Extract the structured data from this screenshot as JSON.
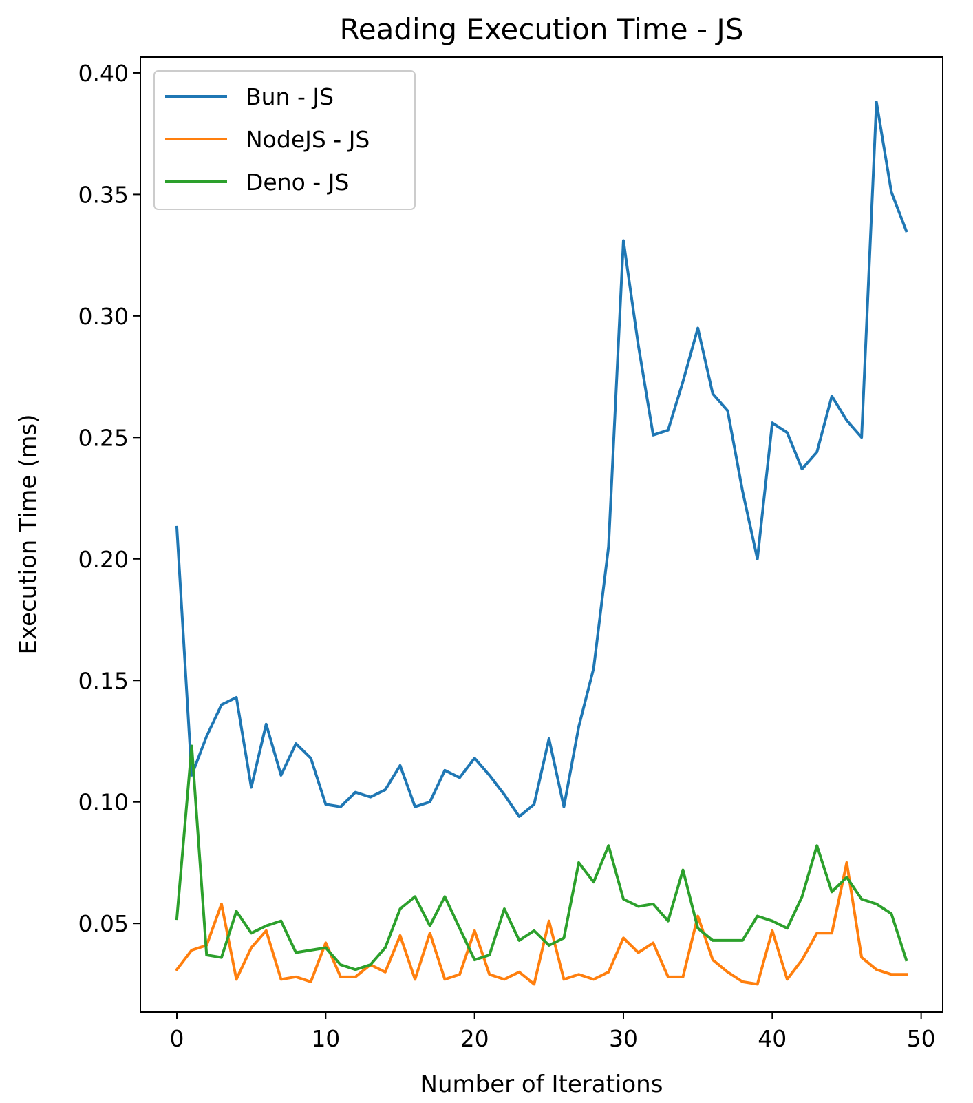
{
  "chart_data": {
    "type": "line",
    "title": "Reading Execution Time - JS",
    "xlabel": "Number of Iterations",
    "ylabel": "Execution Time (ms)",
    "xlim": [
      -2.45,
      51.45
    ],
    "ylim": [
      0.0135,
      0.4065
    ],
    "xticks": [
      0,
      10,
      20,
      30,
      40,
      50
    ],
    "yticks": [
      0.05,
      0.1,
      0.15,
      0.2,
      0.25,
      0.3,
      0.35,
      0.4
    ],
    "xtick_labels": [
      "0",
      "10",
      "20",
      "30",
      "40",
      "50"
    ],
    "ytick_labels": [
      "0.05",
      "0.10",
      "0.15",
      "0.20",
      "0.25",
      "0.30",
      "0.35",
      "0.40"
    ],
    "grid": false,
    "legend_position": "top-left",
    "x": [
      0,
      1,
      2,
      3,
      4,
      5,
      6,
      7,
      8,
      9,
      10,
      11,
      12,
      13,
      14,
      15,
      16,
      17,
      18,
      19,
      20,
      21,
      22,
      23,
      24,
      25,
      26,
      27,
      28,
      29,
      30,
      31,
      32,
      33,
      34,
      35,
      36,
      37,
      38,
      39,
      40,
      41,
      42,
      43,
      44,
      45,
      46,
      47,
      48,
      49
    ],
    "series": [
      {
        "name": "Bun - JS",
        "color": "#1f77b4",
        "values": [
          0.213,
          0.111,
          0.127,
          0.14,
          0.143,
          0.106,
          0.132,
          0.111,
          0.124,
          0.118,
          0.099,
          0.098,
          0.104,
          0.102,
          0.105,
          0.115,
          0.098,
          0.1,
          0.113,
          0.11,
          0.118,
          0.111,
          0.103,
          0.094,
          0.099,
          0.126,
          0.098,
          0.131,
          0.155,
          0.205,
          0.331,
          0.288,
          0.251,
          0.253,
          0.273,
          0.295,
          0.268,
          0.261,
          0.228,
          0.2,
          0.256,
          0.252,
          0.237,
          0.244,
          0.267,
          0.257,
          0.25,
          0.388,
          0.351,
          0.335
        ]
      },
      {
        "name": "NodeJS - JS",
        "color": "#ff7f0e",
        "values": [
          0.031,
          0.039,
          0.041,
          0.058,
          0.027,
          0.04,
          0.047,
          0.027,
          0.028,
          0.026,
          0.042,
          0.028,
          0.028,
          0.033,
          0.03,
          0.045,
          0.027,
          0.046,
          0.027,
          0.029,
          0.047,
          0.029,
          0.027,
          0.03,
          0.025,
          0.051,
          0.027,
          0.029,
          0.027,
          0.03,
          0.044,
          0.038,
          0.042,
          0.028,
          0.028,
          0.053,
          0.035,
          0.03,
          0.026,
          0.025,
          0.047,
          0.027,
          0.035,
          0.046,
          0.046,
          0.075,
          0.036,
          0.031,
          0.029,
          0.029
        ]
      },
      {
        "name": "Deno - JS",
        "color": "#2ca02c",
        "values": [
          0.052,
          0.123,
          0.037,
          0.036,
          0.055,
          0.046,
          0.049,
          0.051,
          0.038,
          0.039,
          0.04,
          0.033,
          0.031,
          0.033,
          0.04,
          0.056,
          0.061,
          0.049,
          0.061,
          0.048,
          0.035,
          0.037,
          0.056,
          0.043,
          0.047,
          0.041,
          0.044,
          0.075,
          0.067,
          0.082,
          0.06,
          0.057,
          0.058,
          0.051,
          0.072,
          0.048,
          0.043,
          0.043,
          0.043,
          0.053,
          0.051,
          0.048,
          0.061,
          0.082,
          0.063,
          0.069,
          0.06,
          0.058,
          0.054,
          0.035
        ]
      }
    ]
  }
}
